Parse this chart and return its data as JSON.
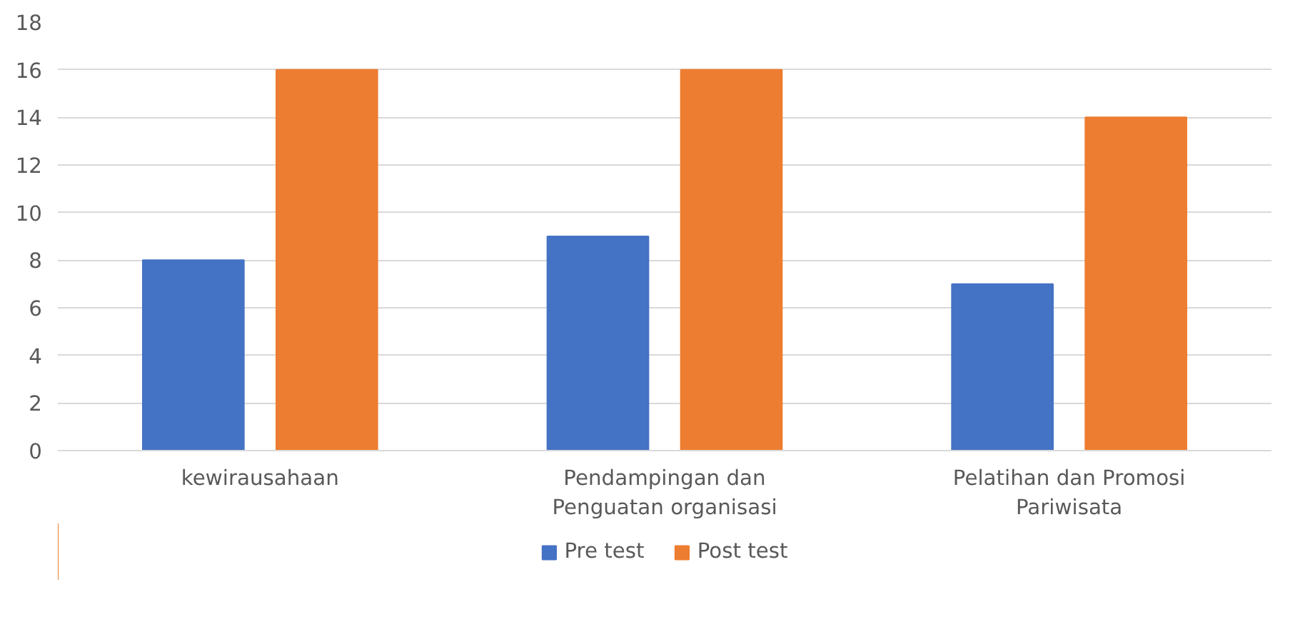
{
  "chart_data": {
    "type": "bar",
    "categories": [
      "kewirausahaan",
      "Pendampingan dan\nPenguatan organisasi",
      "Pelatihan dan Promosi\nPariwisata"
    ],
    "series": [
      {
        "name": "Pre test",
        "color": "#4472c4",
        "values": [
          8,
          9,
          7
        ]
      },
      {
        "name": "Post test",
        "color": "#ed7d31",
        "values": [
          16,
          16,
          14
        ]
      }
    ],
    "ylim": [
      0,
      18
    ],
    "yticks": [
      0,
      2,
      4,
      6,
      8,
      10,
      12,
      14,
      16,
      18
    ],
    "grid": "y",
    "legend": "bottom"
  }
}
